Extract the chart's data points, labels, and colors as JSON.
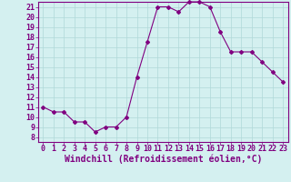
{
  "x": [
    0,
    1,
    2,
    3,
    4,
    5,
    6,
    7,
    8,
    9,
    10,
    11,
    12,
    13,
    14,
    15,
    16,
    17,
    18,
    19,
    20,
    21,
    22,
    23
  ],
  "y": [
    11.0,
    10.5,
    10.5,
    9.5,
    9.5,
    8.5,
    9.0,
    9.0,
    10.0,
    14.0,
    17.5,
    21.0,
    21.0,
    20.5,
    21.5,
    21.5,
    21.0,
    18.5,
    16.5,
    16.5,
    16.5,
    15.5,
    14.5,
    13.5
  ],
  "line_color": "#800080",
  "marker": "D",
  "marker_size": 2,
  "bg_color": "#d4f0f0",
  "grid_color": "#b0d8d8",
  "xlabel": "Windchill (Refroidissement éolien,°C)",
  "xlabel_fontsize": 7,
  "tick_fontsize": 6,
  "ylim": [
    7.5,
    21.5
  ],
  "xlim": [
    -0.5,
    23.5
  ],
  "yticks": [
    8,
    9,
    10,
    11,
    12,
    13,
    14,
    15,
    16,
    17,
    18,
    19,
    20,
    21
  ],
  "xticks": [
    0,
    1,
    2,
    3,
    4,
    5,
    6,
    7,
    8,
    9,
    10,
    11,
    12,
    13,
    14,
    15,
    16,
    17,
    18,
    19,
    20,
    21,
    22,
    23
  ]
}
